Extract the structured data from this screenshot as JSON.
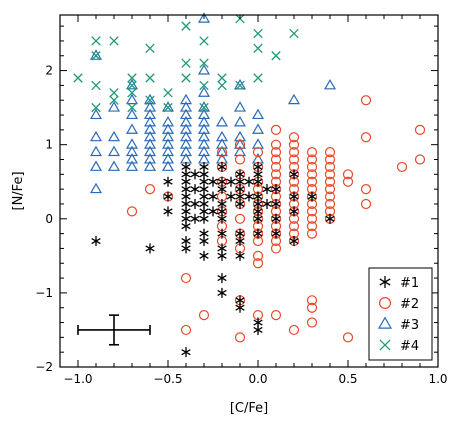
{
  "chart_data": {
    "type": "scatter",
    "xlabel": "[C/Fe]",
    "ylabel": "[N/Fe]",
    "xlim": [
      -1.1,
      1.0
    ],
    "ylim": [
      -2.0,
      2.75
    ],
    "xticks": [
      -1.0,
      -0.5,
      0.0,
      0.5,
      1.0
    ],
    "xtick_labels": [
      "−1.0",
      "−0.5",
      "0.0",
      "0.5",
      "1.0"
    ],
    "yticks": [
      -2,
      -1,
      0,
      1,
      2
    ],
    "ytick_labels": [
      "−2",
      "−1",
      "0",
      "1",
      "2"
    ],
    "legend_position": "lower-right",
    "typical_error_bar": {
      "x": -0.8,
      "y": -1.5,
      "xerr": 0.2,
      "yerr": 0.2
    },
    "series": [
      {
        "name": "#1",
        "marker": "asterisk",
        "color": "#000000",
        "points": [
          [
            -0.9,
            -0.3
          ],
          [
            -0.6,
            -0.4
          ],
          [
            -0.5,
            0.5
          ],
          [
            -0.5,
            0.3
          ],
          [
            -0.5,
            0.1
          ],
          [
            -0.4,
            0.7
          ],
          [
            -0.4,
            0.6
          ],
          [
            -0.4,
            0.5
          ],
          [
            -0.4,
            0.4
          ],
          [
            -0.4,
            0.3
          ],
          [
            -0.4,
            0.2
          ],
          [
            -0.4,
            0.1
          ],
          [
            -0.4,
            0.0
          ],
          [
            -0.4,
            -0.1
          ],
          [
            -0.4,
            -0.3
          ],
          [
            -0.4,
            -0.4
          ],
          [
            -0.4,
            -1.8
          ],
          [
            -0.35,
            0.6
          ],
          [
            -0.35,
            0.4
          ],
          [
            -0.35,
            0.2
          ],
          [
            -0.35,
            0.0
          ],
          [
            -0.3,
            0.7
          ],
          [
            -0.3,
            0.6
          ],
          [
            -0.3,
            0.5
          ],
          [
            -0.3,
            0.4
          ],
          [
            -0.3,
            0.3
          ],
          [
            -0.3,
            0.2
          ],
          [
            -0.3,
            0.1
          ],
          [
            -0.3,
            0.0
          ],
          [
            -0.3,
            -0.2
          ],
          [
            -0.3,
            -0.3
          ],
          [
            -0.3,
            -0.5
          ],
          [
            -0.25,
            0.5
          ],
          [
            -0.25,
            0.3
          ],
          [
            -0.25,
            0.1
          ],
          [
            -0.2,
            0.7
          ],
          [
            -0.2,
            0.5
          ],
          [
            -0.2,
            0.4
          ],
          [
            -0.2,
            0.2
          ],
          [
            -0.2,
            0.1
          ],
          [
            -0.2,
            0.0
          ],
          [
            -0.2,
            -0.2
          ],
          [
            -0.2,
            -0.4
          ],
          [
            -0.2,
            -0.5
          ],
          [
            -0.2,
            -0.8
          ],
          [
            -0.2,
            -1.0
          ],
          [
            -0.15,
            0.5
          ],
          [
            -0.15,
            0.3
          ],
          [
            -0.1,
            0.6
          ],
          [
            -0.1,
            0.5
          ],
          [
            -0.1,
            0.4
          ],
          [
            -0.1,
            0.3
          ],
          [
            -0.1,
            0.2
          ],
          [
            -0.1,
            -0.2
          ],
          [
            -0.1,
            -0.3
          ],
          [
            -0.1,
            -0.5
          ],
          [
            -0.1,
            -1.1
          ],
          [
            -0.1,
            -1.2
          ],
          [
            -0.05,
            0.5
          ],
          [
            -0.05,
            0.3
          ],
          [
            0.0,
            0.7
          ],
          [
            0.0,
            0.6
          ],
          [
            0.0,
            0.5
          ],
          [
            0.0,
            0.3
          ],
          [
            0.0,
            0.2
          ],
          [
            0.0,
            0.1
          ],
          [
            0.0,
            0.0
          ],
          [
            0.0,
            -0.2
          ],
          [
            0.0,
            -1.4
          ],
          [
            0.0,
            -1.5
          ],
          [
            0.05,
            0.4
          ],
          [
            0.05,
            0.2
          ],
          [
            0.1,
            0.4
          ],
          [
            0.1,
            0.2
          ],
          [
            0.1,
            0.0
          ],
          [
            0.1,
            -0.2
          ],
          [
            0.2,
            0.6
          ],
          [
            0.2,
            0.3
          ],
          [
            0.2,
            0.1
          ],
          [
            0.2,
            -0.3
          ],
          [
            0.3,
            0.3
          ],
          [
            0.4,
            0.0
          ]
        ]
      },
      {
        "name": "#2",
        "marker": "circle",
        "color": "#e8492a",
        "points": [
          [
            -0.7,
            0.1
          ],
          [
            -0.6,
            0.4
          ],
          [
            -0.5,
            0.3
          ],
          [
            -0.4,
            -0.8
          ],
          [
            -0.4,
            -1.5
          ],
          [
            -0.3,
            -1.3
          ],
          [
            -0.2,
            0.9
          ],
          [
            -0.2,
            0.7
          ],
          [
            -0.2,
            0.5
          ],
          [
            -0.2,
            0.3
          ],
          [
            -0.2,
            0.1
          ],
          [
            -0.2,
            -0.1
          ],
          [
            -0.2,
            -0.3
          ],
          [
            -0.1,
            1.0
          ],
          [
            -0.1,
            0.8
          ],
          [
            -0.1,
            0.6
          ],
          [
            -0.1,
            0.4
          ],
          [
            -0.1,
            0.2
          ],
          [
            -0.1,
            0.0
          ],
          [
            -0.1,
            -0.2
          ],
          [
            -0.1,
            -0.4
          ],
          [
            -0.1,
            -1.1
          ],
          [
            -0.1,
            -1.6
          ],
          [
            0.0,
            0.9
          ],
          [
            0.0,
            0.7
          ],
          [
            0.0,
            0.5
          ],
          [
            0.0,
            0.4
          ],
          [
            0.0,
            0.3
          ],
          [
            0.0,
            0.2
          ],
          [
            0.0,
            0.1
          ],
          [
            0.0,
            0.0
          ],
          [
            0.0,
            -0.1
          ],
          [
            0.0,
            -0.2
          ],
          [
            0.0,
            -0.3
          ],
          [
            0.0,
            -0.5
          ],
          [
            0.0,
            -0.6
          ],
          [
            0.0,
            -1.3
          ],
          [
            0.1,
            1.2
          ],
          [
            0.1,
            1.0
          ],
          [
            0.1,
            0.9
          ],
          [
            0.1,
            0.8
          ],
          [
            0.1,
            0.7
          ],
          [
            0.1,
            0.6
          ],
          [
            0.1,
            0.5
          ],
          [
            0.1,
            0.4
          ],
          [
            0.1,
            0.3
          ],
          [
            0.1,
            0.2
          ],
          [
            0.1,
            0.1
          ],
          [
            0.1,
            0.0
          ],
          [
            0.1,
            -0.1
          ],
          [
            0.1,
            -0.2
          ],
          [
            0.1,
            -0.3
          ],
          [
            0.1,
            -0.4
          ],
          [
            0.1,
            -1.3
          ],
          [
            0.2,
            1.1
          ],
          [
            0.2,
            1.0
          ],
          [
            0.2,
            0.9
          ],
          [
            0.2,
            0.8
          ],
          [
            0.2,
            0.7
          ],
          [
            0.2,
            0.6
          ],
          [
            0.2,
            0.5
          ],
          [
            0.2,
            0.4
          ],
          [
            0.2,
            0.3
          ],
          [
            0.2,
            0.2
          ],
          [
            0.2,
            0.1
          ],
          [
            0.2,
            0.0
          ],
          [
            0.2,
            -0.1
          ],
          [
            0.2,
            -0.2
          ],
          [
            0.2,
            -0.3
          ],
          [
            0.2,
            -1.5
          ],
          [
            0.3,
            0.9
          ],
          [
            0.3,
            0.8
          ],
          [
            0.3,
            0.7
          ],
          [
            0.3,
            0.6
          ],
          [
            0.3,
            0.5
          ],
          [
            0.3,
            0.4
          ],
          [
            0.3,
            0.3
          ],
          [
            0.3,
            0.2
          ],
          [
            0.3,
            0.1
          ],
          [
            0.3,
            0.0
          ],
          [
            0.3,
            -0.1
          ],
          [
            0.3,
            -0.2
          ],
          [
            0.3,
            -1.1
          ],
          [
            0.3,
            -1.2
          ],
          [
            0.3,
            -1.4
          ],
          [
            0.4,
            0.9
          ],
          [
            0.4,
            0.8
          ],
          [
            0.4,
            0.7
          ],
          [
            0.4,
            0.6
          ],
          [
            0.4,
            0.5
          ],
          [
            0.4,
            0.4
          ],
          [
            0.4,
            0.3
          ],
          [
            0.4,
            0.2
          ],
          [
            0.4,
            0.1
          ],
          [
            0.4,
            0.0
          ],
          [
            0.5,
            0.6
          ],
          [
            0.5,
            0.5
          ],
          [
            0.5,
            -1.6
          ],
          [
            0.6,
            1.6
          ],
          [
            0.6,
            1.1
          ],
          [
            0.6,
            0.4
          ],
          [
            0.6,
            0.2
          ],
          [
            0.8,
            0.7
          ],
          [
            0.9,
            1.2
          ],
          [
            0.9,
            0.8
          ]
        ]
      },
      {
        "name": "#3",
        "marker": "triangle",
        "color": "#2a6ab7",
        "points": [
          [
            -0.9,
            2.2
          ],
          [
            -0.9,
            1.4
          ],
          [
            -0.9,
            1.1
          ],
          [
            -0.9,
            0.9
          ],
          [
            -0.9,
            0.7
          ],
          [
            -0.9,
            0.4
          ],
          [
            -0.8,
            1.5
          ],
          [
            -0.8,
            1.1
          ],
          [
            -0.8,
            0.9
          ],
          [
            -0.8,
            0.7
          ],
          [
            -0.7,
            1.8
          ],
          [
            -0.7,
            1.6
          ],
          [
            -0.7,
            1.4
          ],
          [
            -0.7,
            1.2
          ],
          [
            -0.7,
            1.0
          ],
          [
            -0.7,
            0.9
          ],
          [
            -0.7,
            0.8
          ],
          [
            -0.7,
            0.7
          ],
          [
            -0.6,
            1.6
          ],
          [
            -0.6,
            1.5
          ],
          [
            -0.6,
            1.4
          ],
          [
            -0.6,
            1.3
          ],
          [
            -0.6,
            1.2
          ],
          [
            -0.6,
            1.1
          ],
          [
            -0.6,
            1.0
          ],
          [
            -0.6,
            0.9
          ],
          [
            -0.6,
            0.8
          ],
          [
            -0.6,
            0.7
          ],
          [
            -0.5,
            1.5
          ],
          [
            -0.5,
            1.3
          ],
          [
            -0.5,
            1.2
          ],
          [
            -0.5,
            1.1
          ],
          [
            -0.5,
            1.0
          ],
          [
            -0.5,
            0.9
          ],
          [
            -0.5,
            0.8
          ],
          [
            -0.5,
            0.7
          ],
          [
            -0.4,
            1.6
          ],
          [
            -0.4,
            1.5
          ],
          [
            -0.4,
            1.4
          ],
          [
            -0.4,
            1.3
          ],
          [
            -0.4,
            1.2
          ],
          [
            -0.4,
            1.1
          ],
          [
            -0.4,
            1.0
          ],
          [
            -0.4,
            0.9
          ],
          [
            -0.4,
            0.8
          ],
          [
            -0.3,
            2.7
          ],
          [
            -0.3,
            2.0
          ],
          [
            -0.3,
            1.7
          ],
          [
            -0.3,
            1.5
          ],
          [
            -0.3,
            1.4
          ],
          [
            -0.3,
            1.3
          ],
          [
            -0.3,
            1.2
          ],
          [
            -0.3,
            1.1
          ],
          [
            -0.3,
            1.0
          ],
          [
            -0.3,
            0.9
          ],
          [
            -0.3,
            0.8
          ],
          [
            -0.2,
            1.3
          ],
          [
            -0.2,
            1.1
          ],
          [
            -0.2,
            1.0
          ],
          [
            -0.2,
            0.9
          ],
          [
            -0.2,
            0.8
          ],
          [
            -0.1,
            1.8
          ],
          [
            -0.1,
            1.5
          ],
          [
            -0.1,
            1.3
          ],
          [
            -0.1,
            1.1
          ],
          [
            -0.1,
            1.0
          ],
          [
            -0.1,
            0.9
          ],
          [
            0.0,
            1.4
          ],
          [
            0.0,
            1.2
          ],
          [
            0.0,
            1.0
          ],
          [
            0.0,
            0.8
          ],
          [
            0.2,
            1.6
          ],
          [
            0.4,
            1.8
          ]
        ]
      },
      {
        "name": "#4",
        "marker": "x",
        "color": "#1f9a77",
        "points": [
          [
            -1.0,
            1.9
          ],
          [
            -0.9,
            2.4
          ],
          [
            -0.9,
            2.2
          ],
          [
            -0.9,
            1.8
          ],
          [
            -0.9,
            1.5
          ],
          [
            -0.8,
            2.4
          ],
          [
            -0.8,
            1.7
          ],
          [
            -0.8,
            1.6
          ],
          [
            -0.7,
            1.9
          ],
          [
            -0.7,
            1.8
          ],
          [
            -0.7,
            1.7
          ],
          [
            -0.7,
            1.5
          ],
          [
            -0.6,
            2.3
          ],
          [
            -0.6,
            1.9
          ],
          [
            -0.6,
            1.6
          ],
          [
            -0.5,
            1.7
          ],
          [
            -0.5,
            1.5
          ],
          [
            -0.4,
            2.6
          ],
          [
            -0.4,
            2.1
          ],
          [
            -0.4,
            1.9
          ],
          [
            -0.3,
            2.4
          ],
          [
            -0.3,
            2.1
          ],
          [
            -0.3,
            1.8
          ],
          [
            -0.3,
            1.5
          ],
          [
            -0.2,
            1.9
          ],
          [
            -0.2,
            1.8
          ],
          [
            -0.1,
            2.7
          ],
          [
            -0.1,
            1.8
          ],
          [
            0.0,
            2.5
          ],
          [
            0.0,
            2.3
          ],
          [
            0.0,
            1.9
          ],
          [
            0.1,
            2.2
          ],
          [
            0.2,
            2.5
          ]
        ]
      }
    ]
  }
}
